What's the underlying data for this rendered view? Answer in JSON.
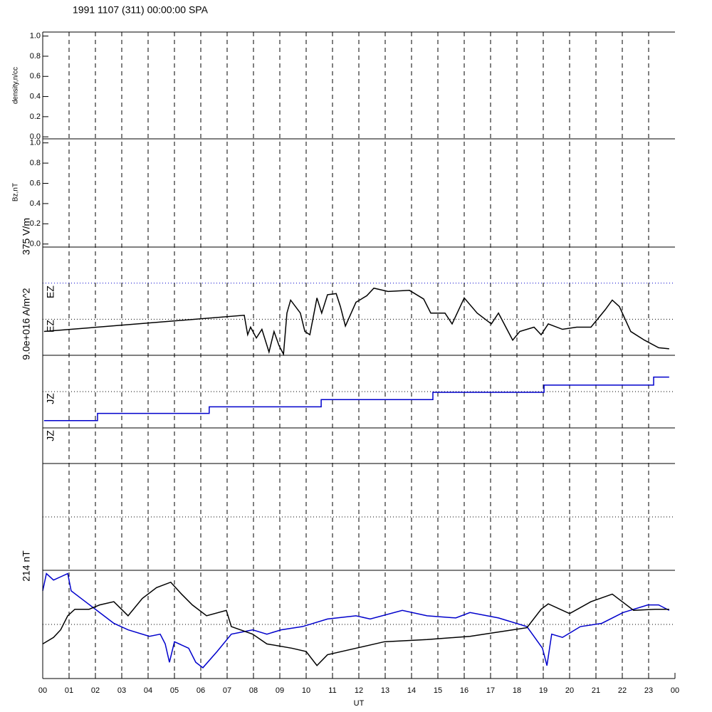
{
  "title": "1991 1107 (311) 00:00:00 SPA",
  "chart_data": [
    {
      "type": "line",
      "ylabel": "density,n/cc",
      "xlim": [
        0,
        24
      ],
      "ylim": [
        -0.02,
        1.04
      ],
      "yticks": [
        {
          "value": 0,
          "label": "0.0"
        },
        {
          "value": 0.2,
          "label": "0.2"
        },
        {
          "value": 0.4,
          "label": "0.4"
        },
        {
          "value": 0.6,
          "label": "0.6"
        },
        {
          "value": 0.8,
          "label": "0.8"
        },
        {
          "value": 1,
          "label": "1.0"
        }
      ],
      "series": []
    },
    {
      "type": "line",
      "ylabel": "Bz,nT",
      "xlim": [
        0,
        24
      ],
      "ylim": [
        -0.03,
        1.04
      ],
      "yticks": [
        {
          "value": 0,
          "label": "0.0"
        },
        {
          "value": 0.2,
          "label": "0.2"
        },
        {
          "value": 0.4,
          "label": "0.4"
        },
        {
          "value": 0.6,
          "label": "0.6"
        },
        {
          "value": 0.8,
          "label": "0.8"
        },
        {
          "value": 1,
          "label": "1.0"
        }
      ],
      "series": []
    },
    {
      "type": "line",
      "ylabel": "375 V/m",
      "labels": [
        "EZ",
        "EZ"
      ],
      "xlim": [
        0,
        24
      ],
      "ylim": [
        0,
        1
      ],
      "series": [
        {
          "color": "#000000",
          "x": [
            0.05,
            7.65,
            7.78,
            7.89,
            8.11,
            8.32,
            8.59,
            8.78,
            8.97,
            9.14,
            9.27,
            9.41,
            9.78,
            9.95,
            10.14,
            10.41,
            10.59,
            10.81,
            11.14,
            11.3,
            11.49,
            11.89,
            12.3,
            12.57,
            13.11,
            13.92,
            14.46,
            14.73,
            15.27,
            15.54,
            16.0,
            16.49,
            17.03,
            17.3,
            17.84,
            18.11,
            18.65,
            18.92,
            19.19,
            19.73,
            20.27,
            20.81,
            21.35,
            21.62,
            21.89,
            22.32,
            22.84,
            23.38,
            23.78
          ],
          "values": [
            0.22,
            0.37,
            0.19,
            0.26,
            0.16,
            0.24,
            0.03,
            0.22,
            0.09,
            0.01,
            0.39,
            0.51,
            0.39,
            0.22,
            0.19,
            0.53,
            0.39,
            0.56,
            0.57,
            0.45,
            0.27,
            0.49,
            0.55,
            0.62,
            0.59,
            0.6,
            0.52,
            0.39,
            0.39,
            0.29,
            0.53,
            0.39,
            0.29,
            0.39,
            0.14,
            0.22,
            0.26,
            0.19,
            0.29,
            0.24,
            0.26,
            0.26,
            0.42,
            0.51,
            0.45,
            0.22,
            0.14,
            0.07,
            0.06
          ]
        }
      ]
    },
    {
      "type": "line",
      "ylabel": "9.0e+016 A/m^2",
      "labels": [
        "JZ"
      ],
      "xlim": [
        0,
        24
      ],
      "ylim": [
        0,
        1
      ],
      "series": [
        {
          "color": "#0000cc",
          "step": true,
          "x": [
            0.05,
            2.08,
            6.32,
            10.57,
            14.81,
            19.03,
            23.19,
            23.78
          ],
          "values": [
            0.1,
            0.2,
            0.29,
            0.39,
            0.49,
            0.59,
            0.7,
            0.7
          ]
        }
      ]
    },
    {
      "type": "line",
      "labels": [
        "JZ"
      ],
      "xlim": [
        0,
        24
      ],
      "series": []
    },
    {
      "type": "line",
      "xlim": [
        0,
        24
      ],
      "series": []
    },
    {
      "type": "line",
      "ylabel": "214 nT",
      "xlabel": "UT",
      "xlim": [
        0,
        24
      ],
      "ylim": [
        0,
        1
      ],
      "xticks": [
        {
          "value": 0,
          "label": "00"
        },
        {
          "value": 1,
          "label": "01"
        },
        {
          "value": 2,
          "label": "02"
        },
        {
          "value": 3,
          "label": "03"
        },
        {
          "value": 4,
          "label": "04"
        },
        {
          "value": 5,
          "label": "05"
        },
        {
          "value": 6,
          "label": "06"
        },
        {
          "value": 7,
          "label": "07"
        },
        {
          "value": 8,
          "label": "08"
        },
        {
          "value": 9,
          "label": "09"
        },
        {
          "value": 10,
          "label": "10"
        },
        {
          "value": 11,
          "label": "11"
        },
        {
          "value": 12,
          "label": "12"
        },
        {
          "value": 13,
          "label": "13"
        },
        {
          "value": 14,
          "label": "14"
        },
        {
          "value": 15,
          "label": "15"
        },
        {
          "value": 16,
          "label": "16"
        },
        {
          "value": 17,
          "label": "17"
        },
        {
          "value": 18,
          "label": "18"
        },
        {
          "value": 19,
          "label": "19"
        },
        {
          "value": 20,
          "label": "20"
        },
        {
          "value": 21,
          "label": "21"
        },
        {
          "value": 22,
          "label": "22"
        },
        {
          "value": 23,
          "label": "23"
        },
        {
          "value": 24,
          "label": "00"
        }
      ],
      "series": [
        {
          "color": "#0000cc",
          "x": [
            0.0,
            0.14,
            0.41,
            0.68,
            0.95,
            1.08,
            1.62,
            2.16,
            2.7,
            3.24,
            4.05,
            4.46,
            4.65,
            4.81,
            5.0,
            5.54,
            5.81,
            6.08,
            6.62,
            7.16,
            7.97,
            8.51,
            9.05,
            9.86,
            10.81,
            11.89,
            12.43,
            13.65,
            14.59,
            15.68,
            16.22,
            17.3,
            18.38,
            18.97,
            19.14,
            19.32,
            19.73,
            20.41,
            21.22,
            22.03,
            22.97,
            23.38,
            23.78
          ],
          "values": [
            0.81,
            0.97,
            0.91,
            0.94,
            0.97,
            0.81,
            0.71,
            0.61,
            0.51,
            0.45,
            0.39,
            0.41,
            0.32,
            0.15,
            0.34,
            0.28,
            0.15,
            0.1,
            0.25,
            0.41,
            0.45,
            0.41,
            0.45,
            0.48,
            0.55,
            0.58,
            0.55,
            0.63,
            0.58,
            0.56,
            0.61,
            0.56,
            0.48,
            0.28,
            0.12,
            0.41,
            0.38,
            0.48,
            0.51,
            0.61,
            0.68,
            0.68,
            0.63
          ]
        },
        {
          "color": "#000000",
          "x": [
            0.0,
            0.41,
            0.68,
            0.95,
            1.22,
            1.76,
            2.16,
            2.7,
            3.24,
            3.78,
            4.32,
            4.86,
            5.27,
            5.68,
            6.22,
            6.97,
            7.16,
            7.97,
            8.51,
            9.46,
            10.0,
            10.41,
            10.81,
            11.89,
            12.97,
            14.59,
            16.22,
            17.84,
            18.38,
            18.92,
            19.19,
            20.0,
            20.81,
            21.62,
            22.43,
            23.24,
            23.78
          ],
          "values": [
            0.32,
            0.38,
            0.45,
            0.58,
            0.64,
            0.64,
            0.68,
            0.71,
            0.58,
            0.74,
            0.84,
            0.89,
            0.78,
            0.68,
            0.58,
            0.63,
            0.48,
            0.41,
            0.32,
            0.28,
            0.25,
            0.12,
            0.22,
            0.28,
            0.34,
            0.36,
            0.39,
            0.45,
            0.47,
            0.64,
            0.69,
            0.6,
            0.71,
            0.78,
            0.63,
            0.64,
            0.64
          ]
        }
      ]
    }
  ]
}
